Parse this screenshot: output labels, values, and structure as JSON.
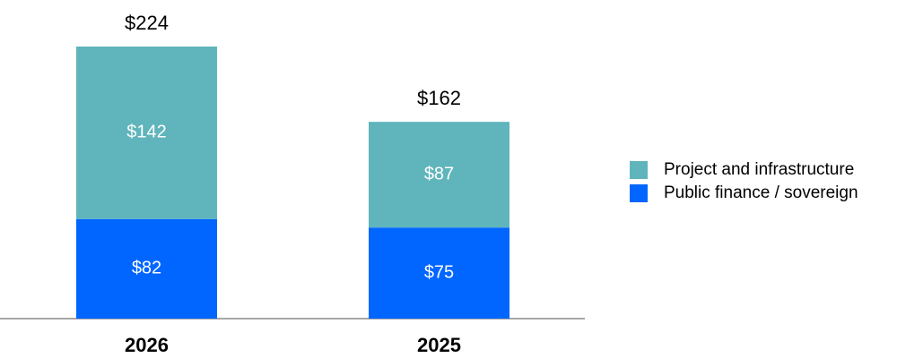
{
  "chart_data": {
    "type": "stacked-bar",
    "categories": [
      "2026",
      "2025"
    ],
    "series": [
      {
        "name": "Project and infrastructure",
        "color": "#5fb5bb",
        "values": [
          142,
          87
        ],
        "value_labels": [
          "$142",
          "$87"
        ]
      },
      {
        "name": "Public finance / sovereign",
        "color": "#0066ff",
        "values": [
          82,
          75
        ],
        "value_labels": [
          "$82",
          "$75"
        ]
      }
    ],
    "totals": [
      224,
      162
    ],
    "total_labels": [
      "$224",
      "$162"
    ]
  }
}
